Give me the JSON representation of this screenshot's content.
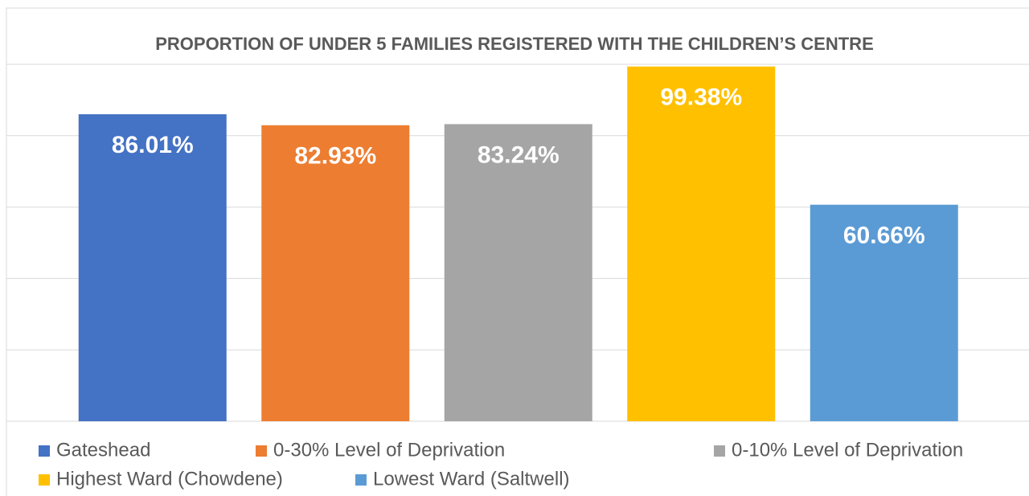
{
  "chart_data": {
    "type": "bar",
    "title": "PROPORTION OF UNDER 5 FAMILIES REGISTERED WITH THE CHILDREN’S CENTRE",
    "series": [
      {
        "name": "Gateshead",
        "color": "#4472c4",
        "values": [
          86.01
        ],
        "value_labels": [
          "86.01%"
        ]
      },
      {
        "name": "0-30% Level of Deprivation",
        "color": "#ed7d31",
        "values": [
          82.93
        ],
        "value_labels": [
          "82.93%"
        ]
      },
      {
        "name": "0-10% Level of Deprivation",
        "color": "#a5a5a5",
        "values": [
          83.24
        ],
        "value_labels": [
          "83.24%"
        ]
      },
      {
        "name": "Highest Ward (Chowdene)",
        "color": "#ffc000",
        "values": [
          99.38
        ],
        "value_labels": [
          "99.38%"
        ]
      },
      {
        "name": "Lowest Ward (Saltwell)",
        "color": "#5b9bd5",
        "values": [
          60.66
        ],
        "value_labels": [
          "60.66%"
        ]
      }
    ],
    "ylim": [
      0,
      100
    ],
    "yticks": [
      0,
      20,
      40,
      60,
      80,
      100
    ],
    "grid": true,
    "legend": "bottom"
  }
}
